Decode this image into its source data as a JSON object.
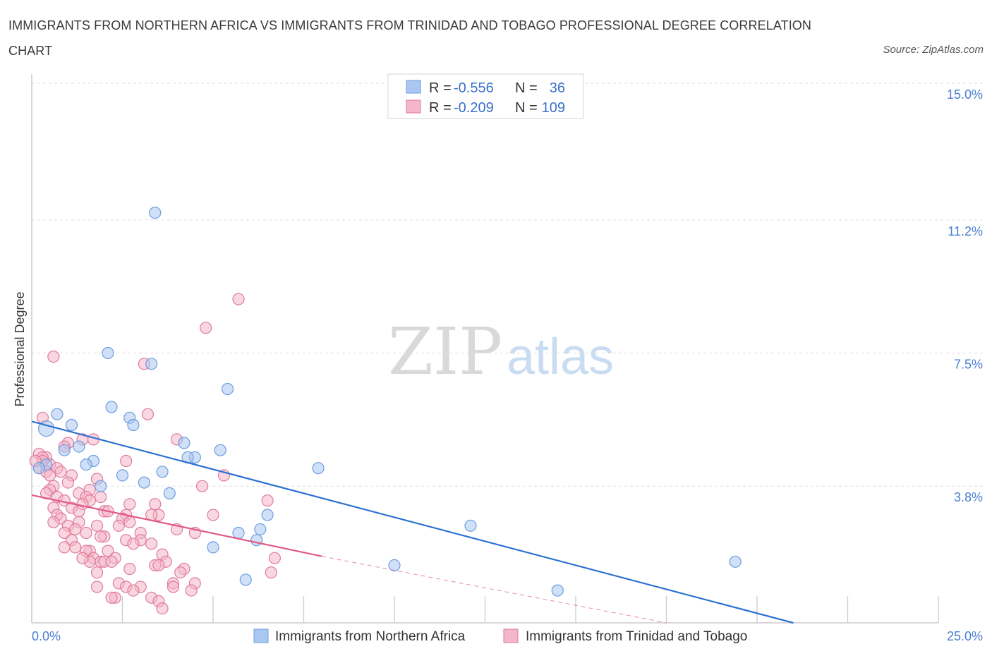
{
  "title": "IMMIGRANTS FROM NORTHERN AFRICA VS IMMIGRANTS FROM TRINIDAD AND TOBAGO PROFESSIONAL DEGREE CORRELATION CHART",
  "source": "Source: ZipAtlas.com",
  "watermark": {
    "zip": "ZIP",
    "atlas": "atlas"
  },
  "colors": {
    "blue_fill": "#a9c7f0",
    "blue_stroke": "#6d9de0",
    "blue_line": "#2f72d2",
    "pink_fill": "#f4b6c9",
    "pink_stroke": "#e07a9c",
    "pink_line": "#e05a85",
    "grid": "#dddddd",
    "axis_text": "#4a7fd0"
  },
  "stats": {
    "r_label": "R =",
    "n_label": "N =",
    "rows": [
      {
        "series": "Immigrants from Northern Africa",
        "r": "-0.556",
        "n": "36"
      },
      {
        "series": "Immigrants from Trinidad and Tobago",
        "r": "-0.209",
        "n": "109"
      }
    ]
  },
  "chart_data": {
    "type": "scatter",
    "title": "IMMIGRANTS FROM NORTHERN AFRICA VS IMMIGRANTS FROM TRINIDAD AND TOBAGO PROFESSIONAL DEGREE CORRELATION CHART",
    "xlabel": "",
    "ylabel": "Professional Degree",
    "xlim": [
      0,
      25
    ],
    "ylim": [
      0,
      15
    ],
    "x_tick_labels": [
      "0.0%",
      "25.0%"
    ],
    "y_ticks": [
      3.8,
      7.5,
      11.2,
      15.0
    ],
    "y_tick_labels": [
      "3.8%",
      "7.5%",
      "11.2%",
      "15.0%"
    ],
    "grid": true,
    "legend_position": "bottom",
    "series": [
      {
        "name": "Immigrants from Northern Africa",
        "trend": {
          "x": [
            0,
            21
          ],
          "y": [
            5.6,
            0
          ]
        },
        "points": [
          {
            "x": 3.4,
            "y": 11.4
          },
          {
            "x": 2.1,
            "y": 7.5
          },
          {
            "x": 3.3,
            "y": 7.2
          },
          {
            "x": 5.4,
            "y": 6.5
          },
          {
            "x": 2.2,
            "y": 6.0
          },
          {
            "x": 0.7,
            "y": 5.8
          },
          {
            "x": 2.7,
            "y": 5.7
          },
          {
            "x": 0.4,
            "y": 5.4,
            "big": true
          },
          {
            "x": 1.1,
            "y": 5.5
          },
          {
            "x": 2.8,
            "y": 5.5
          },
          {
            "x": 4.2,
            "y": 5.0
          },
          {
            "x": 1.3,
            "y": 4.9
          },
          {
            "x": 0.9,
            "y": 4.8
          },
          {
            "x": 5.2,
            "y": 4.8
          },
          {
            "x": 4.5,
            "y": 4.6
          },
          {
            "x": 4.3,
            "y": 4.6
          },
          {
            "x": 1.7,
            "y": 4.5
          },
          {
            "x": 1.5,
            "y": 4.4
          },
          {
            "x": 7.9,
            "y": 4.3
          },
          {
            "x": 3.6,
            "y": 4.2
          },
          {
            "x": 2.5,
            "y": 4.1
          },
          {
            "x": 3.1,
            "y": 3.9
          },
          {
            "x": 1.9,
            "y": 3.8
          },
          {
            "x": 3.8,
            "y": 3.6
          },
          {
            "x": 6.5,
            "y": 3.0
          },
          {
            "x": 12.1,
            "y": 2.7
          },
          {
            "x": 6.3,
            "y": 2.6
          },
          {
            "x": 5.7,
            "y": 2.5
          },
          {
            "x": 6.2,
            "y": 2.3
          },
          {
            "x": 5.0,
            "y": 2.1
          },
          {
            "x": 19.4,
            "y": 1.7
          },
          {
            "x": 10.0,
            "y": 1.6
          },
          {
            "x": 5.9,
            "y": 1.2
          },
          {
            "x": 14.5,
            "y": 0.9
          },
          {
            "x": 0.4,
            "y": 4.4
          },
          {
            "x": 0.2,
            "y": 4.3
          }
        ]
      },
      {
        "name": "Immigrants from Trinidad and Tobago",
        "trend": {
          "x": [
            0,
            8.0
          ],
          "y": [
            3.55,
            1.85
          ]
        },
        "trend_dashed": {
          "x": [
            8.0,
            17.5
          ],
          "y": [
            1.85,
            0
          ]
        },
        "points": [
          {
            "x": 5.7,
            "y": 9.0
          },
          {
            "x": 4.8,
            "y": 8.2
          },
          {
            "x": 0.6,
            "y": 7.4
          },
          {
            "x": 3.1,
            "y": 7.2
          },
          {
            "x": 3.2,
            "y": 5.8
          },
          {
            "x": 0.3,
            "y": 5.7
          },
          {
            "x": 1.4,
            "y": 5.1
          },
          {
            "x": 1.7,
            "y": 5.1
          },
          {
            "x": 4.0,
            "y": 5.1
          },
          {
            "x": 1.0,
            "y": 5.0
          },
          {
            "x": 0.9,
            "y": 4.9
          },
          {
            "x": 0.2,
            "y": 4.7
          },
          {
            "x": 0.4,
            "y": 4.6
          },
          {
            "x": 0.3,
            "y": 4.6
          },
          {
            "x": 2.6,
            "y": 4.5
          },
          {
            "x": 0.5,
            "y": 4.4
          },
          {
            "x": 0.7,
            "y": 4.3
          },
          {
            "x": 0.2,
            "y": 4.3
          },
          {
            "x": 0.4,
            "y": 4.2
          },
          {
            "x": 0.8,
            "y": 4.2
          },
          {
            "x": 1.1,
            "y": 4.1
          },
          {
            "x": 5.3,
            "y": 4.1
          },
          {
            "x": 1.8,
            "y": 4.0
          },
          {
            "x": 0.5,
            "y": 4.1
          },
          {
            "x": 1.0,
            "y": 3.9
          },
          {
            "x": 4.7,
            "y": 3.8
          },
          {
            "x": 0.6,
            "y": 3.8
          },
          {
            "x": 1.6,
            "y": 3.7
          },
          {
            "x": 0.5,
            "y": 3.7
          },
          {
            "x": 1.3,
            "y": 3.6
          },
          {
            "x": 0.4,
            "y": 3.6
          },
          {
            "x": 1.5,
            "y": 3.5
          },
          {
            "x": 0.7,
            "y": 3.5
          },
          {
            "x": 1.9,
            "y": 3.5
          },
          {
            "x": 1.6,
            "y": 3.4
          },
          {
            "x": 0.9,
            "y": 3.4
          },
          {
            "x": 3.4,
            "y": 3.3
          },
          {
            "x": 6.5,
            "y": 3.4
          },
          {
            "x": 2.7,
            "y": 3.3
          },
          {
            "x": 1.4,
            "y": 3.3
          },
          {
            "x": 0.6,
            "y": 3.2
          },
          {
            "x": 1.1,
            "y": 3.2
          },
          {
            "x": 1.3,
            "y": 3.1
          },
          {
            "x": 2.0,
            "y": 3.1
          },
          {
            "x": 2.1,
            "y": 3.1
          },
          {
            "x": 5.0,
            "y": 3.0
          },
          {
            "x": 3.5,
            "y": 3.0
          },
          {
            "x": 2.6,
            "y": 3.0
          },
          {
            "x": 3.3,
            "y": 3.0
          },
          {
            "x": 0.7,
            "y": 3.0
          },
          {
            "x": 0.8,
            "y": 2.9
          },
          {
            "x": 2.5,
            "y": 2.9
          },
          {
            "x": 1.3,
            "y": 2.8
          },
          {
            "x": 2.7,
            "y": 2.8
          },
          {
            "x": 0.6,
            "y": 2.8
          },
          {
            "x": 1.0,
            "y": 2.7
          },
          {
            "x": 1.8,
            "y": 2.7
          },
          {
            "x": 2.4,
            "y": 2.7
          },
          {
            "x": 1.2,
            "y": 2.6
          },
          {
            "x": 4.0,
            "y": 2.6
          },
          {
            "x": 0.9,
            "y": 2.5
          },
          {
            "x": 4.5,
            "y": 2.5
          },
          {
            "x": 1.5,
            "y": 2.5
          },
          {
            "x": 3.0,
            "y": 2.5
          },
          {
            "x": 2.0,
            "y": 2.4
          },
          {
            "x": 1.9,
            "y": 2.4
          },
          {
            "x": 2.6,
            "y": 2.3
          },
          {
            "x": 1.1,
            "y": 2.3
          },
          {
            "x": 3.0,
            "y": 2.3
          },
          {
            "x": 3.3,
            "y": 2.2
          },
          {
            "x": 2.8,
            "y": 2.2
          },
          {
            "x": 1.2,
            "y": 2.1
          },
          {
            "x": 0.9,
            "y": 2.1
          },
          {
            "x": 1.6,
            "y": 2.0
          },
          {
            "x": 2.1,
            "y": 2.0
          },
          {
            "x": 1.5,
            "y": 2.0
          },
          {
            "x": 3.6,
            "y": 1.9
          },
          {
            "x": 1.7,
            "y": 1.8
          },
          {
            "x": 2.3,
            "y": 1.8
          },
          {
            "x": 6.7,
            "y": 1.8
          },
          {
            "x": 1.9,
            "y": 1.7
          },
          {
            "x": 2.0,
            "y": 1.7
          },
          {
            "x": 1.6,
            "y": 1.7
          },
          {
            "x": 3.7,
            "y": 1.7
          },
          {
            "x": 3.4,
            "y": 1.6
          },
          {
            "x": 3.5,
            "y": 1.6
          },
          {
            "x": 2.7,
            "y": 1.5
          },
          {
            "x": 4.2,
            "y": 1.5
          },
          {
            "x": 1.8,
            "y": 1.4
          },
          {
            "x": 4.1,
            "y": 1.4
          },
          {
            "x": 6.6,
            "y": 1.4
          },
          {
            "x": 3.9,
            "y": 1.1
          },
          {
            "x": 2.4,
            "y": 1.1
          },
          {
            "x": 4.5,
            "y": 1.1
          },
          {
            "x": 2.6,
            "y": 1.0
          },
          {
            "x": 3.0,
            "y": 1.0
          },
          {
            "x": 3.9,
            "y": 1.0
          },
          {
            "x": 1.8,
            "y": 1.0
          },
          {
            "x": 4.4,
            "y": 0.9
          },
          {
            "x": 2.8,
            "y": 0.9
          },
          {
            "x": 2.3,
            "y": 0.7
          },
          {
            "x": 2.2,
            "y": 0.7
          },
          {
            "x": 3.3,
            "y": 0.7
          },
          {
            "x": 3.5,
            "y": 0.6
          },
          {
            "x": 3.6,
            "y": 0.4
          },
          {
            "x": 1.4,
            "y": 1.8
          },
          {
            "x": 2.2,
            "y": 1.7
          },
          {
            "x": 0.3,
            "y": 4.5
          },
          {
            "x": 0.1,
            "y": 4.5
          }
        ]
      }
    ]
  }
}
